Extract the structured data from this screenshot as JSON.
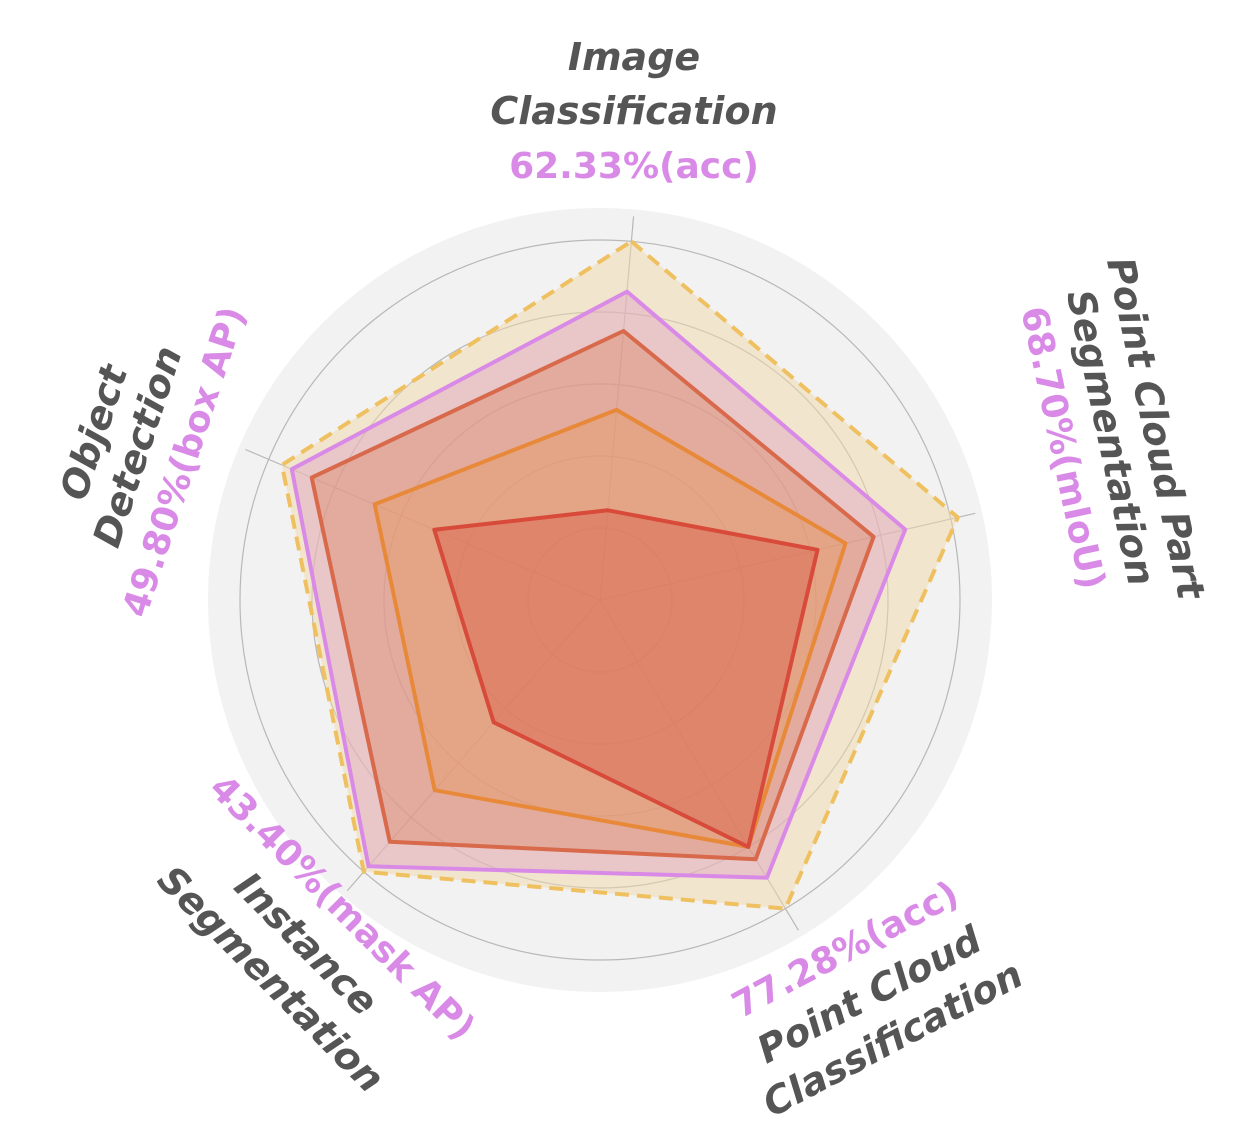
{
  "chart_data": {
    "type": "radar",
    "axes": [
      {
        "name_lines": [
          "Image",
          "Classification"
        ],
        "score": "62.33%(acc)"
      },
      {
        "name_lines": [
          "Point Cloud Part",
          "Segmentation"
        ],
        "score": "68.70%(mIoU)"
      },
      {
        "name_lines": [
          "Point Cloud",
          "Classification"
        ],
        "score": "77.28%(acc)"
      },
      {
        "name_lines": [
          "Instance",
          "Segmentation"
        ],
        "score": "43.40%(mask AP)"
      },
      {
        "name_lines": [
          "Object",
          "Detection"
        ],
        "score": "49.80%(box AP)"
      }
    ],
    "radial_range": [
      0,
      1
    ],
    "grid_rings": [
      0.2,
      0.4,
      0.6,
      0.8,
      1.0
    ],
    "series": [
      {
        "values": [
          0.25,
          0.62,
          0.8,
          0.45,
          0.5
        ],
        "color": "#d84a3a",
        "fill": "#d84a3a",
        "fill_opacity": 0.35,
        "dashed": false
      },
      {
        "values": [
          0.53,
          0.7,
          0.8,
          0.7,
          0.68
        ],
        "color": "#e8893a",
        "fill": "#e89a5a",
        "fill_opacity": 0.35,
        "dashed": false
      },
      {
        "values": [
          0.75,
          0.78,
          0.84,
          0.89,
          0.87
        ],
        "color": "#d8694a",
        "fill": "#d8794f",
        "fill_opacity": 0.35,
        "dashed": false
      },
      {
        "values": [
          0.86,
          0.87,
          0.9,
          0.98,
          0.93
        ],
        "color": "#d98ae6",
        "fill": "#dfa0c4",
        "fill_opacity": 0.45,
        "dashed": false
      },
      {
        "values": [
          1.0,
          1.02,
          1.0,
          1.0,
          0.96
        ],
        "color": "#efc060",
        "fill": "#f0d8a8",
        "fill_opacity": 0.5,
        "dashed": true
      }
    ],
    "draw_order": [
      4,
      3,
      2,
      1,
      0
    ],
    "colors": {
      "background_disc": "#f2f2f2",
      "grid": "#b8b8b8",
      "axis_name": "#555555",
      "axis_score": "#d98ae6"
    }
  }
}
